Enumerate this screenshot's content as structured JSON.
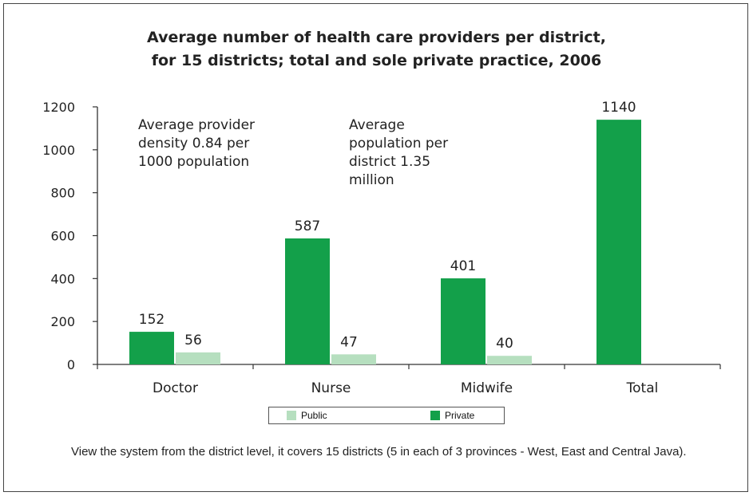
{
  "chart_data": {
    "type": "bar",
    "title_lines": [
      "Average number of health care providers per district,",
      "for 15 districts; total and sole private practice, 2006"
    ],
    "categories": [
      "Doctor",
      "Nurse",
      "Midwife",
      "Total"
    ],
    "series": [
      {
        "name": "Private",
        "color": "#13a04a",
        "values": [
          152,
          587,
          401,
          1140
        ]
      },
      {
        "name": "Public",
        "color": "#b6dfbf",
        "values": [
          56,
          47,
          40,
          null
        ]
      }
    ],
    "data_labels": {
      "Private": [
        "152",
        "587",
        "401",
        "1140"
      ],
      "Public": [
        "56",
        "47",
        "40",
        null
      ]
    },
    "ylim": [
      0,
      1200
    ],
    "yticks": [
      0,
      200,
      400,
      600,
      800,
      1000,
      1200
    ],
    "xlabel": "",
    "ylabel": "",
    "legend_position": "bottom",
    "legend": [
      {
        "name": "Public",
        "color": "#b6dfbf"
      },
      {
        "name": "Private",
        "color": "#13a04a"
      }
    ],
    "annotations": [
      {
        "lines": [
          "Average provider",
          "density 0.84 per",
          "1000 population"
        ]
      },
      {
        "lines": [
          "Average",
          "population per",
          "district 1.35",
          "million"
        ]
      }
    ],
    "grid": false
  },
  "caption": "View the system from the district level, it covers 15 districts (5 in each of 3 provinces - West, East and Central Java)."
}
